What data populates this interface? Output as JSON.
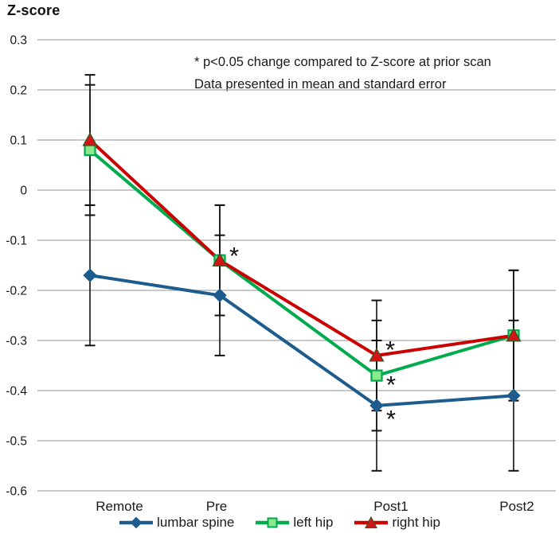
{
  "figure": {
    "title": "Z-score",
    "annotation_line1": "* p&lt;0.05 change compared to Z-score at prior scan",
    "annotation_line2": "Data presented in mean and standard error"
  },
  "chart_data": {
    "type": "line",
    "title": "Z-score",
    "categories": [
      "Remote",
      "Pre",
      "Post1",
      "Post2"
    ],
    "ylim": [
      -0.6,
      0.3
    ],
    "yticks": [
      0.3,
      0.2,
      0.1,
      0,
      -0.1,
      -0.2,
      -0.3,
      -0.4,
      -0.5,
      -0.6
    ],
    "grid": "horizontal-only",
    "legend_position": "bottom",
    "error_bars": "mean plus/minus standard error, black capped bars",
    "series": [
      {
        "name": "lumbar spine",
        "marker": "diamond",
        "color": "#1d5c8c",
        "marker_fill": "#1d5c8c",
        "marker_stroke": "#1d5c8c",
        "values": [
          -0.17,
          -0.21,
          -0.43,
          -0.41
        ],
        "errors": [
          0.14,
          0.12,
          0.13,
          0.15
        ]
      },
      {
        "name": "left hip",
        "marker": "square",
        "color": "#00ab4e",
        "marker_fill": "#8be88b",
        "marker_stroke": "#00a94e",
        "values": [
          0.08,
          -0.14,
          -0.37,
          -0.29
        ],
        "errors": [
          0.13,
          0.11,
          0.11,
          0.13
        ]
      },
      {
        "name": "right hip",
        "marker": "triangle",
        "color": "#cc0000",
        "marker_fill": "#d41414",
        "marker_stroke": "#375623",
        "values": [
          0.1,
          -0.14,
          -0.33,
          -0.29
        ],
        "errors": [
          0.13,
          0.11,
          0.11,
          0.13
        ]
      }
    ],
    "significance_marks": [
      {
        "symbol": "*",
        "series": "right hip",
        "category": "Pre"
      },
      {
        "symbol": "*",
        "series": "right hip",
        "category": "Post1"
      },
      {
        "symbol": "*",
        "series": "left hip",
        "category": "Post1"
      },
      {
        "symbol": "*",
        "series": "lumbar spine",
        "category": "Post1"
      }
    ],
    "colors": {
      "grid": "#a8a8a8",
      "error_bar": "#111111",
      "text": "#1a1a1a"
    }
  }
}
